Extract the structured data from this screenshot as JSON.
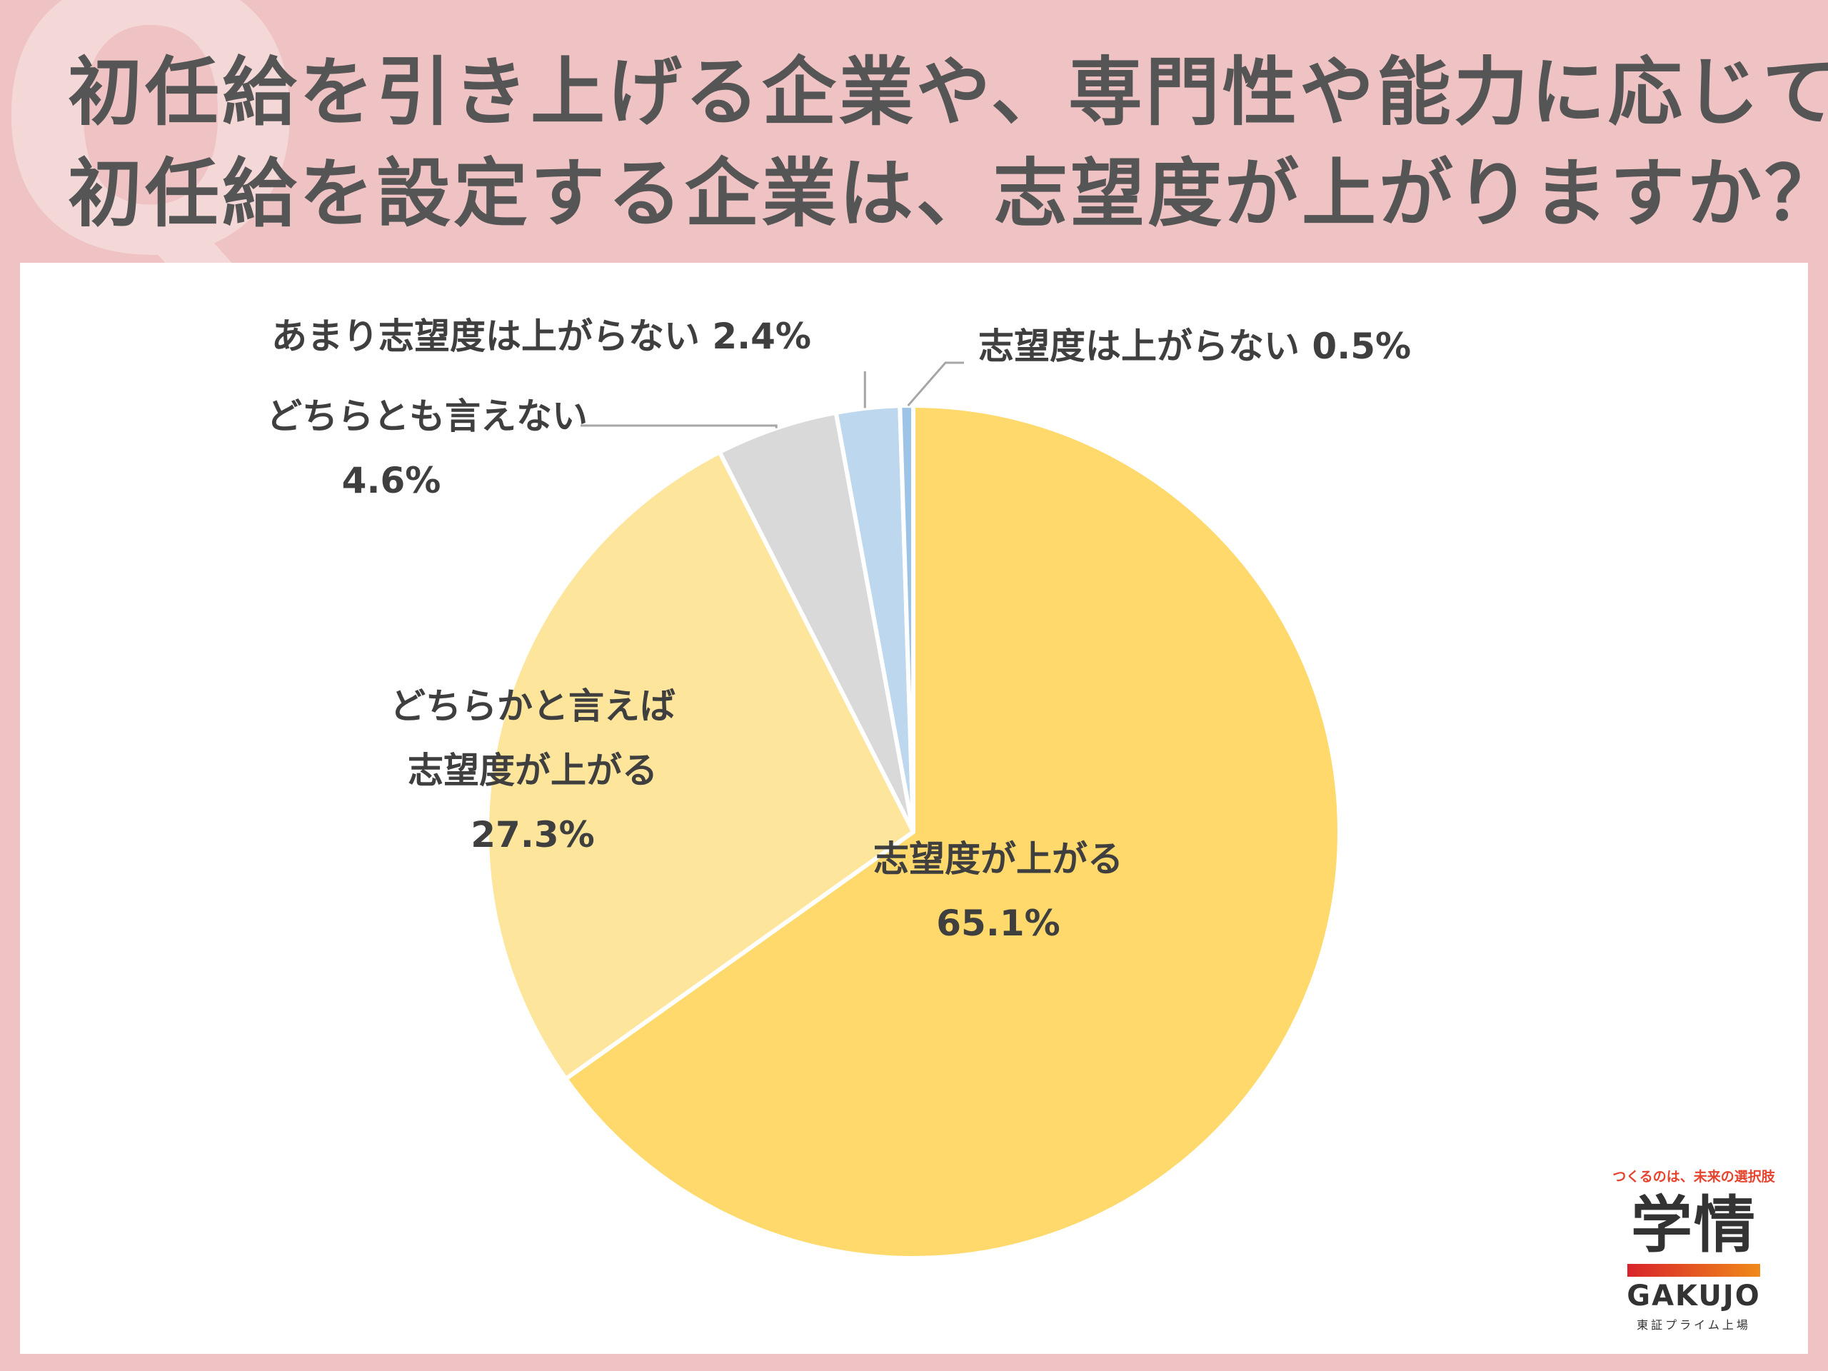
{
  "title": {
    "line1": "初任給を引き上げる企業や、専門性や能力に応じて",
    "line2": "初任給を設定する企業は、志望度が上がりますか？"
  },
  "chart_data": {
    "type": "pie",
    "slices": [
      {
        "label_lines": [
          "志望度が上がる"
        ],
        "value": 65.1,
        "value_text": "65.1%",
        "color": "#ffd96b"
      },
      {
        "label_lines": [
          "どちらかと言えば",
          "志望度が上がる"
        ],
        "value": 27.3,
        "value_text": "27.3%",
        "color": "#fee59c"
      },
      {
        "label_lines": [
          "どちらとも言えない"
        ],
        "value": 4.6,
        "value_text": "4.6%",
        "color": "#d9d9d9"
      },
      {
        "label_lines": [
          "あまり志望度は上がらない"
        ],
        "value": 2.4,
        "value_text": "2.4%",
        "color": "#bdd7ee"
      },
      {
        "label_lines": [
          "志望度は上がらない"
        ],
        "value": 0.5,
        "value_text": "0.5%",
        "color": "#9dc3e6"
      }
    ]
  },
  "logo": {
    "tagline": "つくるのは、未来の選択肢",
    "kanji": "学情",
    "roman": "GAKUJO",
    "sub": "東証プライム上場"
  }
}
